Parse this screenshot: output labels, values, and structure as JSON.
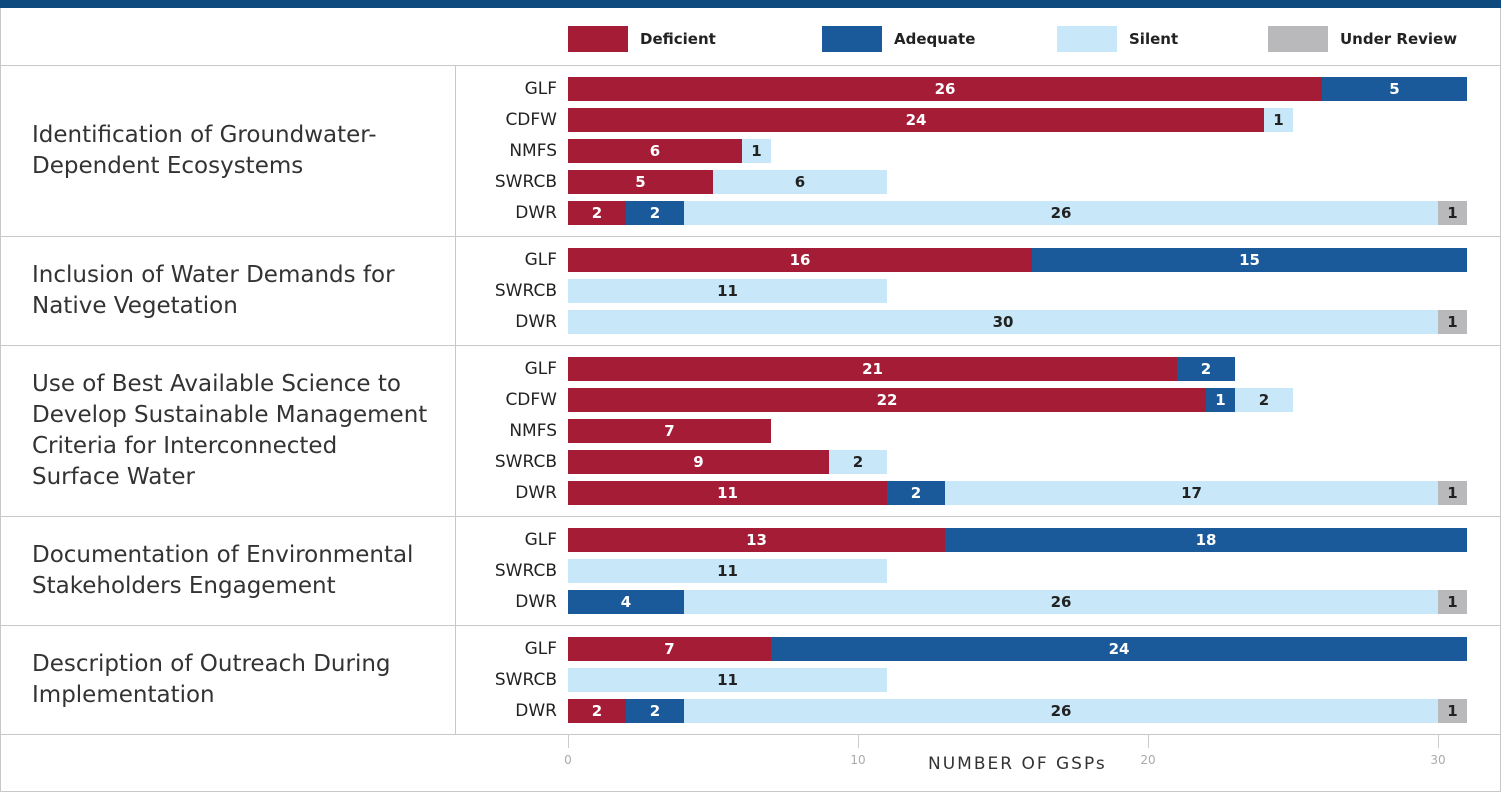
{
  "chart_data": {
    "type": "stacked-bar",
    "orientation": "horizontal",
    "xlabel": "NUMBER OF GSPs",
    "xlim": [
      0,
      31
    ],
    "xticks": [
      0,
      10,
      20,
      30
    ],
    "series": [
      {
        "name": "Deficient",
        "color": "#a51c36",
        "text_color": "#ffffff"
      },
      {
        "name": "Adequate",
        "color": "#1b5a9a",
        "text_color": "#ffffff"
      },
      {
        "name": "Silent",
        "color": "#c8e7f8",
        "text_color": "#222222"
      },
      {
        "name": "Under Review",
        "color": "#b9b9bc",
        "text_color": "#222222"
      }
    ],
    "groups": [
      {
        "label": "Identification of Groundwater-Dependent Ecosystems",
        "categories": [
          "GLF",
          "CDFW",
          "NMFS",
          "SWRCB",
          "DWR"
        ],
        "values": [
          [
            26,
            24,
            6,
            5,
            2
          ],
          [
            5,
            null,
            null,
            null,
            2
          ],
          [
            null,
            1,
            1,
            6,
            26
          ],
          [
            null,
            null,
            null,
            null,
            1
          ]
        ]
      },
      {
        "label": "Inclusion of Water Demands for Native Vegetation",
        "categories": [
          "GLF",
          "SWRCB",
          "DWR"
        ],
        "values": [
          [
            16,
            null,
            null
          ],
          [
            15,
            null,
            null
          ],
          [
            null,
            11,
            30
          ],
          [
            null,
            null,
            1
          ]
        ]
      },
      {
        "label": "Use of Best Available Science to Develop Sustainable Management Criteria for Interconnected Surface Water",
        "categories": [
          "GLF",
          "CDFW",
          "NMFS",
          "SWRCB",
          "DWR"
        ],
        "values": [
          [
            21,
            22,
            7,
            9,
            11
          ],
          [
            2,
            1,
            null,
            null,
            2
          ],
          [
            null,
            2,
            null,
            2,
            17
          ],
          [
            null,
            null,
            null,
            null,
            1
          ]
        ]
      },
      {
        "label": "Documentation of Environmental Stakeholders Engagement",
        "categories": [
          "GLF",
          "SWRCB",
          "DWR"
        ],
        "values": [
          [
            13,
            null,
            null
          ],
          [
            18,
            null,
            4
          ],
          [
            null,
            11,
            26
          ],
          [
            null,
            null,
            1
          ]
        ]
      },
      {
        "label": "Description of Outreach During Implementation",
        "categories": [
          "GLF",
          "SWRCB",
          "DWR"
        ],
        "values": [
          [
            7,
            null,
            2
          ],
          [
            24,
            null,
            2
          ],
          [
            null,
            11,
            26
          ],
          [
            null,
            null,
            1
          ]
        ]
      }
    ]
  }
}
